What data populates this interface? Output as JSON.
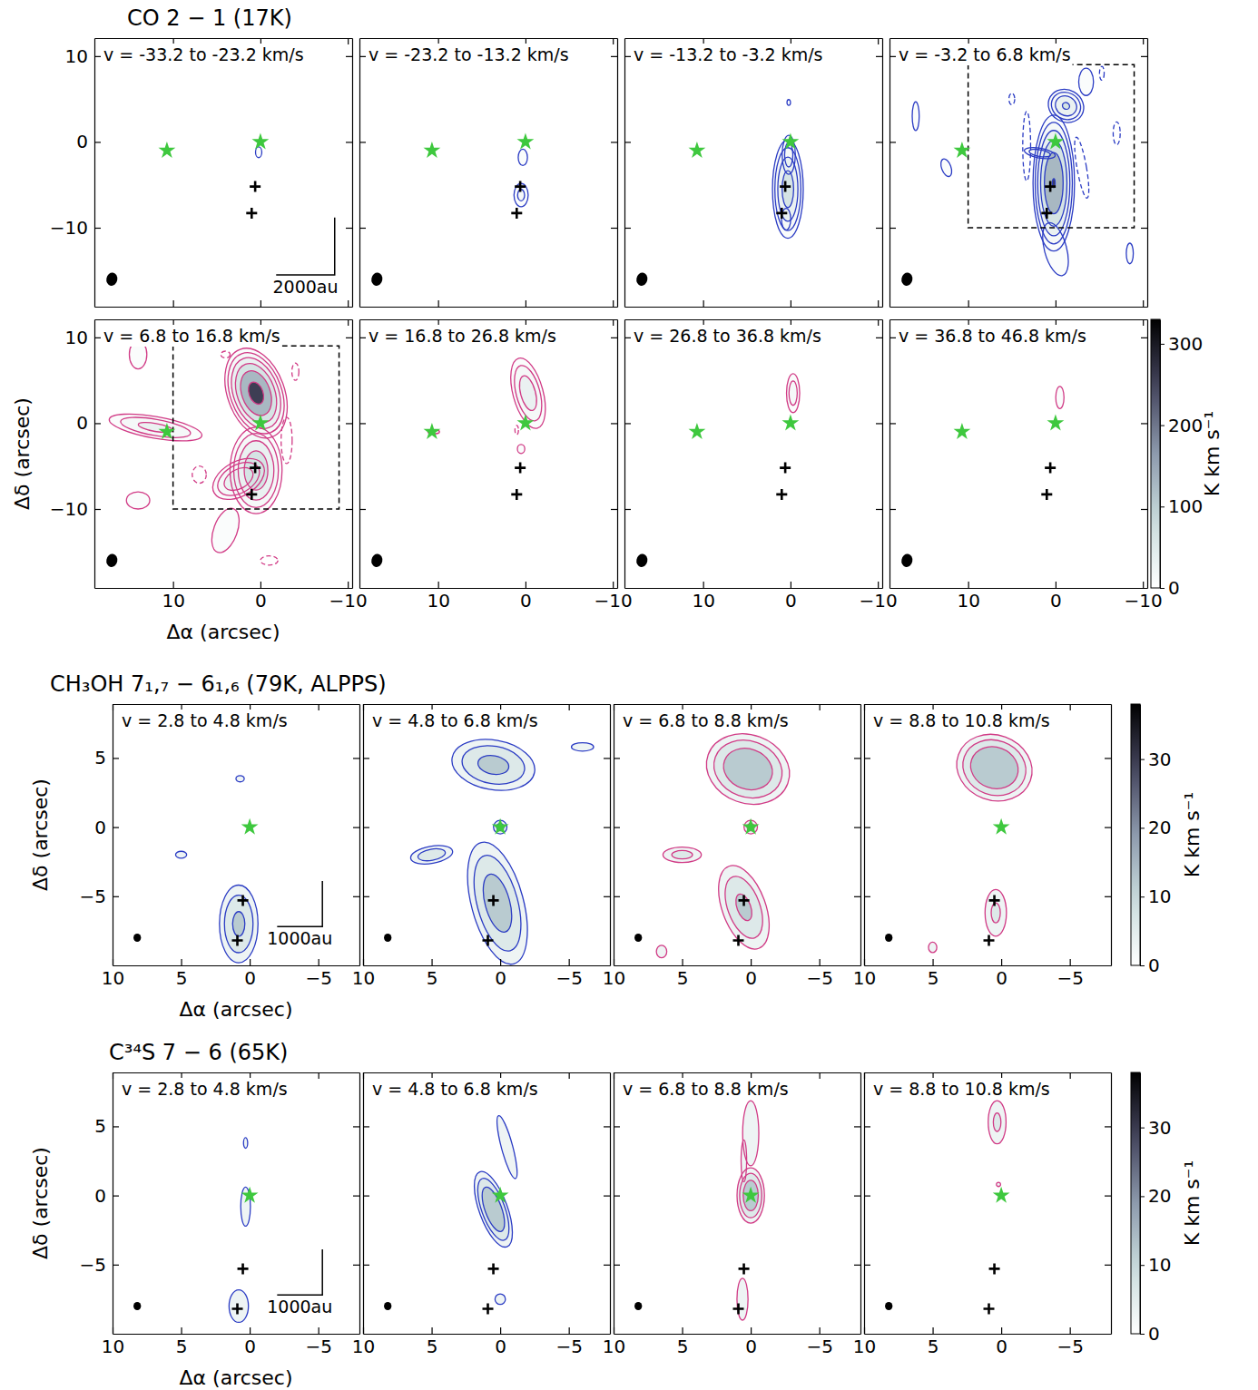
{
  "chart_data": [
    {
      "type": "channel_map",
      "title": "CO 2 − 1 (17K)",
      "xlabel": "Δα (arcsec)",
      "ylabel": "Δδ (arcsec)",
      "xlim": [
        19,
        -10.5
      ],
      "ylim": [
        -19.2,
        12.1
      ],
      "xticks": [
        10,
        0,
        {
          "value": -10,
          "label": "−10"
        }
      ],
      "yticks": [
        10,
        0,
        {
          "value": -10,
          "label": "−10"
        }
      ],
      "contour_levels": [
        8,
        16,
        32,
        64,
        128,
        256
      ],
      "colorbar": {
        "range": [
          0,
          330
        ],
        "ticks": [
          0,
          100,
          200,
          300
        ],
        "label": "K km s⁻¹"
      },
      "stars": {
        "x": [
          0,
          10.7
        ],
        "y": [
          0,
          -1.0
        ]
      },
      "crosses": {
        "x": [
          0.6,
          1.0
        ],
        "y": [
          -5.2,
          -8.3
        ]
      },
      "beam": {
        "x": 17,
        "y": -16,
        "major": 1.55,
        "minor": 1.25,
        "pa": 10
      },
      "scalebar": {
        "x": -8.5,
        "y": -15.5,
        "length": 6.7,
        "label": "2000au"
      },
      "panels": [
        {
          "title": "v = -33.2 to -23.2 km/s",
          "color": "#2b3cc4",
          "blobs": [
            {
              "x": 0.2,
              "y": -1.2,
              "sx": 0.4,
              "sy": 0.7,
              "pa": 0,
              "peak": 12
            }
          ]
        },
        {
          "title": "v = -23.2 to -13.2 km/s",
          "color": "#2b3cc4",
          "blobs": [
            {
              "x": 0.3,
              "y": -1.8,
              "sx": 0.5,
              "sy": 0.9,
              "pa": 0,
              "peak": 14
            },
            {
              "x": 0.5,
              "y": -6.2,
              "sx": 0.6,
              "sy": 1.0,
              "pa": 0,
              "peak": 20
            }
          ]
        },
        {
          "title": "v = -13.2 to -3.2 km/s",
          "color": "#2b3cc4",
          "blobs": [
            {
              "x": 0.3,
              "y": -5.5,
              "sx": 0.8,
              "sy": 2.6,
              "pa": 0,
              "peak": 90
            },
            {
              "x": 0.2,
              "y": -1.5,
              "sx": 0.5,
              "sy": 1.5,
              "pa": 0,
              "peak": 25
            },
            {
              "x": 0.5,
              "y": -9.0,
              "sx": 0.5,
              "sy": 1.2,
              "pa": 0,
              "peak": 14
            },
            {
              "x": 0.2,
              "y": 4.6,
              "sx": 0.3,
              "sy": 0.5,
              "pa": 0,
              "peak": 10
            }
          ]
        },
        {
          "title": "v = -3.2 to 6.8 km/s",
          "color": "#2b3cc4",
          "box": {
            "x": [
              10,
              -9
            ],
            "y": [
              -10,
              9
            ]
          },
          "blobs": [
            {
              "x": 0.2,
              "y": -4.8,
              "sx": 0.9,
              "sy": 3.0,
              "pa": 0,
              "peak": 260
            },
            {
              "x": 0.0,
              "y": -12.5,
              "sx": 1.2,
              "sy": 3.0,
              "pa": -15,
              "peak": 14
            },
            {
              "x": -1.2,
              "y": 4.2,
              "sx": 1.0,
              "sy": 0.9,
              "pa": 30,
              "peak": 70
            },
            {
              "x": -3.5,
              "y": 7.0,
              "sx": 0.8,
              "sy": 1.5,
              "pa": 0,
              "peak": 14
            },
            {
              "x": 1.8,
              "y": -1.3,
              "sx": 1.1,
              "sy": 0.35,
              "pa": 10,
              "peak": 30
            },
            {
              "x": -8.5,
              "y": -13,
              "sx": 0.6,
              "sy": 1.8,
              "pa": 0,
              "peak": 10
            },
            {
              "x": 12.5,
              "y": -3,
              "sx": 0.8,
              "sy": 1.6,
              "pa": -20,
              "peak": 10
            },
            {
              "x": 16,
              "y": 3,
              "sx": 0.6,
              "sy": 2.5,
              "pa": 0,
              "peak": 10
            },
            {
              "x": -3.0,
              "y": -3,
              "sx": 0.6,
              "sy": 4,
              "pa": -10,
              "peak": -12
            },
            {
              "x": 3.3,
              "y": -0.5,
              "sx": 0.5,
              "sy": 4.5,
              "pa": 0,
              "peak": -12
            },
            {
              "x": 5,
              "y": 5,
              "sx": 0.5,
              "sy": 1,
              "pa": 0,
              "peak": -10
            },
            {
              "x": -7,
              "y": 1,
              "sx": 0.6,
              "sy": 2,
              "pa": 0,
              "peak": -10
            },
            {
              "x": -5.3,
              "y": 8,
              "sx": 0.4,
              "sy": 1.2,
              "pa": 0,
              "peak": -10
            }
          ]
        },
        {
          "title": "v = 6.8 to 16.8 km/s",
          "color": "#d13b86",
          "box": {
            "x": [
              10,
              -9
            ],
            "y": [
              -10,
              9
            ]
          },
          "blobs": [
            {
              "x": 0.5,
              "y": 3.5,
              "sx": 1.2,
              "sy": 2.0,
              "pa": -20,
              "peak": 320
            },
            {
              "x": 0.5,
              "y": -5.5,
              "sx": 1.3,
              "sy": 2.2,
              "pa": 0,
              "peak": 110
            },
            {
              "x": 2.5,
              "y": -6.5,
              "sx": 1.6,
              "sy": 1.0,
              "pa": -30,
              "peak": 60
            },
            {
              "x": 12,
              "y": -0.5,
              "sx": 3,
              "sy": 0.7,
              "pa": 10,
              "peak": 40
            },
            {
              "x": 4,
              "y": -12.5,
              "sx": 1.5,
              "sy": 3,
              "pa": 20,
              "peak": 12
            },
            {
              "x": 14,
              "y": 8,
              "sx": 1.5,
              "sy": 2.5,
              "pa": 0,
              "peak": 10
            },
            {
              "x": 14,
              "y": -9,
              "sx": 2,
              "sy": 1.5,
              "pa": 0,
              "peak": 10
            },
            {
              "x": -3,
              "y": -2,
              "sx": 0.7,
              "sy": 3,
              "pa": 0,
              "peak": -12
            },
            {
              "x": 7,
              "y": -6,
              "sx": 1.2,
              "sy": 1.5,
              "pa": 0,
              "peak": -10
            },
            {
              "x": -4,
              "y": 6,
              "sx": 0.6,
              "sy": 1.5,
              "pa": 0,
              "peak": -10
            },
            {
              "x": 4,
              "y": 8,
              "sx": 0.8,
              "sy": 0.6,
              "pa": 0,
              "peak": -10
            },
            {
              "x": -1,
              "y": -16,
              "sx": 1.5,
              "sy": 0.8,
              "pa": 0,
              "peak": -10
            }
          ]
        },
        {
          "title": "v = 16.8 to 26.8 km/s",
          "color": "#d13b86",
          "blobs": [
            {
              "x": -0.3,
              "y": 3.5,
              "sx": 0.9,
              "sy": 2.2,
              "pa": -15,
              "peak": 50
            },
            {
              "x": 0.5,
              "y": -3,
              "sx": 0.4,
              "sy": 0.5,
              "pa": 0,
              "peak": 14
            },
            {
              "x": 10.5,
              "y": -1,
              "sx": 1,
              "sy": 0.35,
              "pa": 0,
              "peak": 10
            },
            {
              "x": 1,
              "y": -0.8,
              "sx": 0.3,
              "sy": 0.8,
              "pa": 0,
              "peak": -10
            }
          ]
        },
        {
          "title": "v = 26.8 to 36.8 km/s",
          "color": "#d13b86",
          "blobs": [
            {
              "x": -0.3,
              "y": 3.5,
              "sx": 0.5,
              "sy": 1.5,
              "pa": 0,
              "peak": 25
            }
          ]
        },
        {
          "title": "v = 36.8 to 46.8 km/s",
          "color": "#d13b86",
          "blobs": [
            {
              "x": -0.5,
              "y": 3.0,
              "sx": 0.4,
              "sy": 1.1,
              "pa": 0,
              "peak": 16
            }
          ]
        }
      ]
    },
    {
      "type": "channel_map",
      "title": "CH₃OH 7₁,₇ − 6₁,₆ (79K, ALPPS)",
      "xlabel": "Δα (arcsec)",
      "ylabel": "Δδ (arcsec)",
      "xlim": [
        10,
        -8
      ],
      "ylim": [
        -10,
        8.9
      ],
      "xticks": [
        10,
        5,
        0,
        {
          "value": -5,
          "label": "−5"
        }
      ],
      "yticks": [
        5,
        0,
        {
          "value": -5,
          "label": "−5"
        }
      ],
      "contour_levels": [
        3,
        6,
        12
      ],
      "colorbar": {
        "range": [
          0,
          38
        ],
        "ticks": [
          0,
          10,
          20,
          30
        ],
        "label": "K km s⁻¹"
      },
      "stars": {
        "x": [
          0
        ],
        "y": [
          0
        ]
      },
      "crosses": {
        "x": [
          0.5,
          0.9
        ],
        "y": [
          -5.3,
          -8.2
        ]
      },
      "beam": {
        "x": 8.2,
        "y": -8,
        "major": 0.6,
        "minor": 0.55,
        "pa": 0
      },
      "scalebar": {
        "x": -5.3,
        "y": -7.2,
        "length": 3.3,
        "label": "1000au"
      },
      "panels": [
        {
          "title": "v = 2.8 to 4.8 km/s",
          "color": "#2b3cc4",
          "blobs": [
            {
              "x": 0.8,
              "y": -7,
              "sx": 0.8,
              "sy": 1.6,
              "pa": 0,
              "peak": 14
            },
            {
              "x": 5,
              "y": -2,
              "sx": 0.4,
              "sy": 0.25,
              "pa": 0,
              "peak": 5
            },
            {
              "x": 0.7,
              "y": 3.5,
              "sx": 0.4,
              "sy": 0.3,
              "pa": 0,
              "peak": 4
            }
          ]
        },
        {
          "title": "v = 4.8 to 6.8 km/s",
          "color": "#2b3cc4",
          "blobs": [
            {
              "x": 0.5,
              "y": 4.5,
              "sx": 1.7,
              "sy": 1.0,
              "pa": 10,
              "peak": 15
            },
            {
              "x": -6,
              "y": 5.8,
              "sx": 0.8,
              "sy": 0.3,
              "pa": 0,
              "peak": 5
            },
            {
              "x": 5,
              "y": -2,
              "sx": 1.0,
              "sy": 0.4,
              "pa": -10,
              "peak": 10
            },
            {
              "x": 0.2,
              "y": -5.5,
              "sx": 1.0,
              "sy": 2.4,
              "pa": -15,
              "peak": 18
            },
            {
              "x": 0,
              "y": 0,
              "sx": 0.35,
              "sy": 0.35,
              "pa": 0,
              "peak": 8
            }
          ]
        },
        {
          "title": "v = 6.8 to 8.8 km/s",
          "color": "#d13b86",
          "blobs": [
            {
              "x": 0.2,
              "y": 4.2,
              "sx": 1.5,
              "sy": 1.2,
              "pa": 20,
              "peak": 25
            },
            {
              "x": 5,
              "y": -2,
              "sx": 1.0,
              "sy": 0.4,
              "pa": 0,
              "peak": 8
            },
            {
              "x": 0.5,
              "y": -5.8,
              "sx": 0.9,
              "sy": 1.8,
              "pa": -20,
              "peak": 14
            },
            {
              "x": 0,
              "y": 0,
              "sx": 0.35,
              "sy": 0.35,
              "pa": 0,
              "peak": 8
            },
            {
              "x": 6.5,
              "y": -9,
              "sx": 0.5,
              "sy": 0.6,
              "pa": 0,
              "peak": 4
            }
          ]
        },
        {
          "title": "v = 8.8 to 10.8 km/s",
          "color": "#d13b86",
          "blobs": [
            {
              "x": 0.5,
              "y": 4.3,
              "sx": 1.3,
              "sy": 1.1,
              "pa": 20,
              "peak": 30
            },
            {
              "x": 0.4,
              "y": -6.2,
              "sx": 0.6,
              "sy": 1.3,
              "pa": 0,
              "peak": 7
            },
            {
              "x": 0,
              "y": 0,
              "sx": 0.25,
              "sy": 0.25,
              "pa": 0,
              "peak": 4
            },
            {
              "x": 5,
              "y": -8.7,
              "sx": 0.4,
              "sy": 0.5,
              "pa": 0,
              "peak": 4
            }
          ]
        }
      ]
    },
    {
      "type": "channel_map",
      "title": "C³⁴S 7 − 6 (65K)",
      "xlabel": "Δα (arcsec)",
      "ylabel": "Δδ (arcsec)",
      "xlim": [
        10,
        -8
      ],
      "ylim": [
        -10,
        8.9
      ],
      "xticks": [
        10,
        5,
        0,
        {
          "value": -5,
          "label": "−5"
        }
      ],
      "yticks": [
        5,
        0,
        {
          "value": -5,
          "label": "−5"
        }
      ],
      "contour_levels": [
        3,
        6,
        12
      ],
      "colorbar": {
        "range": [
          0,
          38
        ],
        "ticks": [
          0,
          10,
          20,
          30
        ],
        "label": "K km s⁻¹"
      },
      "stars": {
        "x": [
          0
        ],
        "y": [
          0
        ]
      },
      "crosses": {
        "x": [
          0.5,
          0.9
        ],
        "y": [
          -5.3,
          -8.2
        ]
      },
      "beam": {
        "x": 8.2,
        "y": -8,
        "major": 0.6,
        "minor": 0.55,
        "pa": 0
      },
      "scalebar": {
        "x": -5.3,
        "y": -7.2,
        "length": 3.3,
        "label": "1000au"
      },
      "panels": [
        {
          "title": "v = 2.8 to 4.8 km/s",
          "color": "#2b3cc4",
          "blobs": [
            {
              "x": 0.3,
              "y": -0.8,
              "sx": 0.3,
              "sy": 1.2,
              "pa": 0,
              "peak": 6
            },
            {
              "x": 0.3,
              "y": 3.8,
              "sx": 0.2,
              "sy": 0.5,
              "pa": 0,
              "peak": 4
            },
            {
              "x": 0.8,
              "y": -8,
              "sx": 0.6,
              "sy": 1,
              "pa": 0,
              "peak": 6
            }
          ]
        },
        {
          "title": "v = 4.8 to 6.8 km/s",
          "color": "#2b3cc4",
          "blobs": [
            {
              "x": 0.5,
              "y": -1,
              "sx": 0.5,
              "sy": 1.4,
              "pa": -20,
              "peak": 25
            },
            {
              "x": -0.5,
              "y": 3.5,
              "sx": 0.35,
              "sy": 2,
              "pa": -15,
              "peak": 6
            },
            {
              "x": 0,
              "y": -7.5,
              "sx": 0.5,
              "sy": 0.5,
              "pa": 0,
              "peak": 4
            }
          ]
        },
        {
          "title": "v = 6.8 to 8.8 km/s",
          "color": "#d13b86",
          "blobs": [
            {
              "x": 0,
              "y": 0,
              "sx": 0.5,
              "sy": 1.0,
              "pa": 0,
              "peak": 22
            },
            {
              "x": 0,
              "y": 4.5,
              "sx": 0.5,
              "sy": 2,
              "pa": 0,
              "peak": 6
            },
            {
              "x": 0.6,
              "y": -7.5,
              "sx": 0.4,
              "sy": 1.5,
              "pa": 0,
              "peak": 5
            },
            {
              "x": 0.5,
              "y": 2.5,
              "sx": 0.2,
              "sy": 1.5,
              "pa": 0,
              "peak": 5
            }
          ]
        },
        {
          "title": "v = 8.8 to 10.8 km/s",
          "color": "#d13b86",
          "blobs": [
            {
              "x": 0.3,
              "y": 5.3,
              "sx": 0.5,
              "sy": 1.2,
              "pa": 0,
              "peak": 7
            },
            {
              "x": 0.2,
              "y": 0.8,
              "sx": 0.2,
              "sy": 0.2,
              "pa": 0,
              "peak": 4
            }
          ]
        }
      ]
    }
  ]
}
